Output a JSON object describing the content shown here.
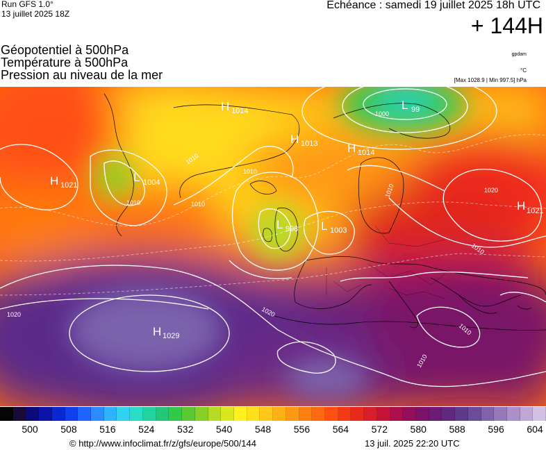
{
  "header": {
    "run_label": "Run GFS 1.0°",
    "run_date": "13 juillet 2025 18Z",
    "echeance": "Echéance : samedi 19 juillet 2025 18h UTC",
    "lead_time": "+ 144H"
  },
  "titles": {
    "line1": "Géopotentiel à 500hPa",
    "line2": "Température à 500hPa",
    "line3": "Pression au niveau de la mer"
  },
  "units": {
    "geopotential": "gpdam",
    "temperature": "°C",
    "max_min": "[Max 1028.9 | Min 997.5] hPa"
  },
  "pressure_centers": [
    {
      "type": "H",
      "value": "1014"
    },
    {
      "type": "L",
      "value": "99"
    },
    {
      "type": "H",
      "value": "1013"
    },
    {
      "type": "H",
      "value": "1014"
    },
    {
      "type": "H",
      "value": "1021"
    },
    {
      "type": "L",
      "value": "1004"
    },
    {
      "type": "L",
      "value": "998"
    },
    {
      "type": "L",
      "value": "1003"
    },
    {
      "type": "H",
      "value": "1021"
    },
    {
      "type": "H",
      "value": "1029"
    }
  ],
  "isobar_labels": [
    "1000",
    "1010",
    "1010",
    "1010",
    "1010",
    "1020",
    "1020",
    "1020",
    "1010",
    "1010",
    "1010",
    "1010"
  ],
  "scale": {
    "ticks": [
      "500",
      "508",
      "516",
      "524",
      "532",
      "540",
      "548",
      "556",
      "564",
      "572",
      "580",
      "588",
      "596",
      "604"
    ],
    "colors": [
      "#050505",
      "#1a0a3a",
      "#0a0a78",
      "#0a14a8",
      "#0a28d2",
      "#1040ee",
      "#1e64ff",
      "#2a8cff",
      "#2eb4ff",
      "#30d2f0",
      "#28dcc8",
      "#22d2a0",
      "#22c878",
      "#34c84a",
      "#5ac832",
      "#86d028",
      "#b4dc24",
      "#dce61e",
      "#fff01e",
      "#ffe01a",
      "#ffc818",
      "#ffb014",
      "#ff9812",
      "#ff8010",
      "#ff6a10",
      "#ff5012",
      "#f43a14",
      "#e82a1c",
      "#d81e2a",
      "#c41438",
      "#ac104a",
      "#940e5a",
      "#7c1268",
      "#6c1c74",
      "#622880",
      "#5e3a8c",
      "#6a4c9a",
      "#7e62aa",
      "#9478ba",
      "#aa90c8",
      "#c0a8d6",
      "#d4c0e2"
    ]
  },
  "footer": {
    "copyright": "© http://www.infoclimat.fr/z/gfs/europe/500/144",
    "issued": "13 juil. 2025 22:20 UTC"
  }
}
